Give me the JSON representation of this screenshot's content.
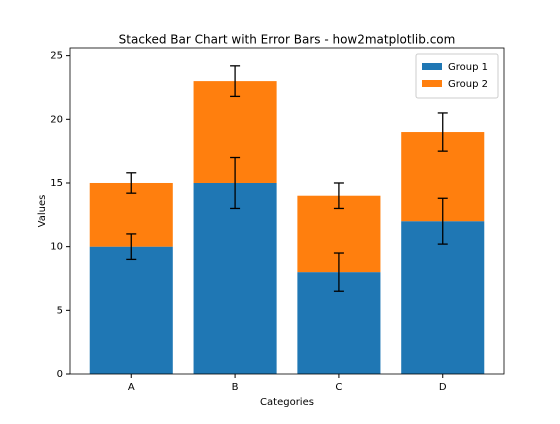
{
  "chart_data": {
    "type": "bar",
    "stacked": true,
    "title": "Stacked Bar Chart with Error Bars - how2matplotlib.com",
    "x_label": "Categories",
    "y_label": "Values",
    "categories": [
      "A",
      "B",
      "C",
      "D"
    ],
    "series": [
      {
        "name": "Group 1",
        "color": "#1f77b4",
        "values": [
          10,
          15,
          8,
          12
        ],
        "errors": [
          1,
          2,
          1.5,
          1.8
        ]
      },
      {
        "name": "Group 2",
        "color": "#ff7f0e",
        "values": [
          5,
          8,
          6,
          7
        ],
        "errors": [
          0.8,
          1.2,
          1,
          1.5
        ]
      }
    ],
    "ylim": [
      0,
      25.6
    ],
    "yticks": [
      0,
      5,
      10,
      15,
      20,
      25
    ],
    "legend": "upper right",
    "grid": false
  }
}
